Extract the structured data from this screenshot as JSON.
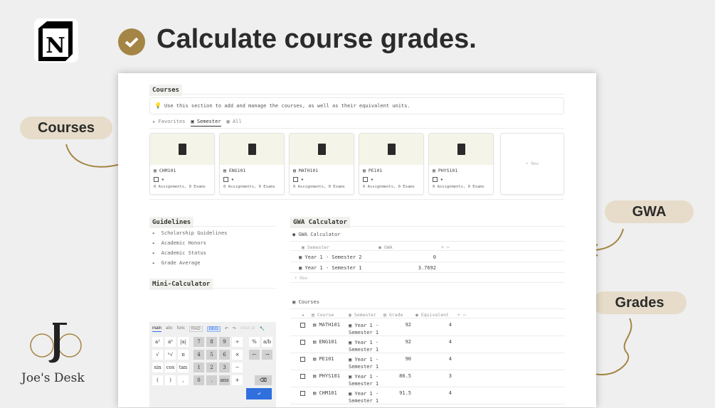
{
  "header": {
    "title": "Calculate course grades.",
    "brand": "Joe's Desk"
  },
  "callouts": {
    "courses": "Courses",
    "gwa": "GWA",
    "grades": "Grades"
  },
  "courses_section": {
    "heading": "Courses",
    "hint": "Use this section to add and manage the courses, as well as their equivalent units.",
    "tabs": [
      "Favorites",
      "Semester",
      "All"
    ],
    "active_tab": "Semester",
    "cards": [
      {
        "name": "CHM101",
        "meta": "0 Assignments, 0 Exams"
      },
      {
        "name": "ENG101",
        "meta": "0 Assignments, 0 Exams"
      },
      {
        "name": "MATH101",
        "meta": "0 Assignments, 0 Exams"
      },
      {
        "name": "PE101",
        "meta": "0 Assignments, 0 Exams"
      },
      {
        "name": "PHYS101",
        "meta": "0 Assignments, 0 Exams"
      }
    ],
    "new_label": "+ New",
    "star": "★"
  },
  "guidelines": {
    "heading": "Guidelines",
    "items": [
      "Scholarship Guidelines",
      "Academic Honors",
      "Academic Status",
      "Grade Average"
    ]
  },
  "mini_calc": {
    "heading": "Mini-Calculator",
    "tabs": [
      "main",
      "abc",
      "func"
    ],
    "modes": [
      "RAD",
      "DEG"
    ],
    "clear": "clear all",
    "keys": [
      [
        "a²",
        "aᵇ",
        "|a|",
        "7",
        "8",
        "9",
        "÷",
        "%",
        "a/b"
      ],
      [
        "√",
        "ⁿ√",
        "π",
        "4",
        "5",
        "6",
        "×",
        "←",
        "→"
      ],
      [
        "sin",
        "cos",
        "tan",
        "1",
        "2",
        "3",
        "−",
        "",
        ""
      ],
      [
        "(",
        ")",
        ",",
        "0",
        ".",
        "ans",
        "+",
        "",
        ""
      ]
    ]
  },
  "gwa": {
    "heading": "GWA Calculator",
    "db_title": "GWA Calculator",
    "columns": [
      "Semester",
      "GWA"
    ],
    "rows": [
      {
        "semester": "Year 1 - Semester 2",
        "gwa": "0"
      },
      {
        "semester": "Year 1 - Semester 1",
        "gwa": "3.7692"
      }
    ],
    "new_label": "+ New"
  },
  "grades": {
    "db_title": "Courses",
    "columns": [
      "Course",
      "Semester",
      "Grade",
      "Equivalent"
    ],
    "rows": [
      {
        "course": "MATH101",
        "sem1": "Year 1 -",
        "sem2": "Semester 1",
        "grade": "92",
        "eq": "4"
      },
      {
        "course": "ENG101",
        "sem1": "Year 1 -",
        "sem2": "Semester 1",
        "grade": "92",
        "eq": "4"
      },
      {
        "course": "PE101",
        "sem1": "Year 1 -",
        "sem2": "Semester 1",
        "grade": "90",
        "eq": "4"
      },
      {
        "course": "PHYS101",
        "sem1": "Year 1 -",
        "sem2": "Semester 1",
        "grade": "86.5",
        "eq": "3"
      },
      {
        "course": "CHM101",
        "sem1": "Year 1 -",
        "sem2": "Semester 1",
        "grade": "91.5",
        "eq": "4"
      }
    ]
  },
  "colors": {
    "accent": "#a58545",
    "pill": "#e6dcc9",
    "enter": "#2f6fde"
  }
}
